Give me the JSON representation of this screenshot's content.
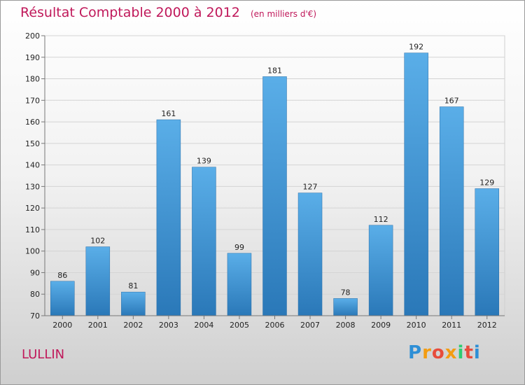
{
  "title": "Résultat Comptable 2000 à 2012",
  "unit": "(en milliers d'€)",
  "commune": "LULLIN",
  "logo": {
    "letters": [
      "P",
      "r",
      "o",
      "x",
      "i",
      "t",
      "i"
    ],
    "colors": [
      "#2e8fd6",
      "#f39c12",
      "#e74c3c",
      "#f39c12",
      "#2ecc71",
      "#e74c3c",
      "#2e8fd6"
    ]
  },
  "colors": {
    "bar_top": "#5aaee8",
    "bar_bottom": "#2a78b8",
    "title": "#c0185a"
  },
  "chart_data": {
    "type": "bar",
    "title": "Résultat Comptable 2000 à 2012",
    "categories": [
      "2000",
      "2001",
      "2002",
      "2003",
      "2004",
      "2005",
      "2006",
      "2007",
      "2008",
      "2009",
      "2010",
      "2011",
      "2012"
    ],
    "values": [
      86,
      102,
      81,
      161,
      139,
      99,
      181,
      127,
      78,
      112,
      192,
      167,
      129
    ],
    "ylim": [
      70,
      200
    ],
    "yticks": [
      70,
      80,
      90,
      100,
      110,
      120,
      130,
      140,
      150,
      160,
      170,
      180,
      190,
      200
    ],
    "grid": true,
    "xlabel": "",
    "ylabel": ""
  }
}
